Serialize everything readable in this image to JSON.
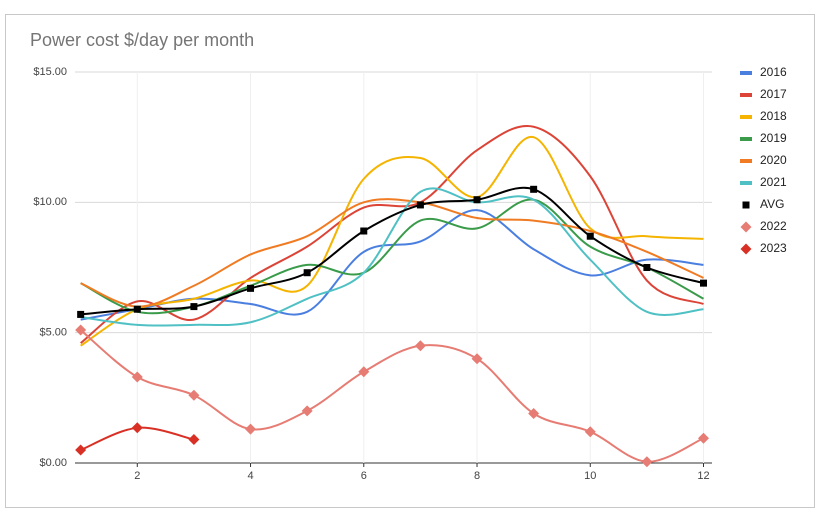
{
  "chart_data": {
    "type": "line",
    "title": "Power cost $/day per month",
    "x": [
      1,
      2,
      3,
      4,
      5,
      6,
      7,
      8,
      9,
      10,
      11,
      12
    ],
    "xlim": [
      0.9,
      12.15
    ],
    "xticks": [
      2,
      4,
      6,
      8,
      10,
      12
    ],
    "ylim": [
      0,
      15
    ],
    "yticks": [
      {
        "value": 0,
        "label": "$0.00"
      },
      {
        "value": 5,
        "label": "$5.00"
      },
      {
        "value": 10,
        "label": "$10.00"
      },
      {
        "value": 15,
        "label": "$15.00"
      }
    ],
    "grid": true,
    "smooth": true,
    "legend": "right",
    "series": [
      {
        "name": "2016",
        "color": "#4a7fe0",
        "marker": "line",
        "values": [
          5.5,
          5.9,
          6.3,
          6.1,
          5.8,
          8.1,
          8.5,
          9.7,
          8.2,
          7.2,
          7.8,
          7.6
        ]
      },
      {
        "name": "2017",
        "color": "#db4437",
        "marker": "line",
        "values": [
          4.6,
          6.2,
          5.5,
          7.1,
          8.3,
          9.8,
          10.0,
          12.0,
          12.9,
          11.0,
          7.0,
          6.1
        ]
      },
      {
        "name": "2018",
        "color": "#f4b400",
        "marker": "line",
        "values": [
          4.5,
          5.9,
          6.3,
          7.0,
          6.8,
          10.9,
          11.7,
          10.2,
          12.5,
          9.0,
          8.7,
          8.6
        ]
      },
      {
        "name": "2019",
        "color": "#3a9b4a",
        "marker": "line",
        "values": [
          6.9,
          5.8,
          6.0,
          6.8,
          7.6,
          7.3,
          9.3,
          9.0,
          10.1,
          8.3,
          7.5,
          6.3
        ]
      },
      {
        "name": "2020",
        "color": "#f07b22",
        "marker": "line",
        "values": [
          6.9,
          6.0,
          6.8,
          8.0,
          8.7,
          10.0,
          10.0,
          9.4,
          9.3,
          8.9,
          8.1,
          7.1
        ]
      },
      {
        "name": "2021",
        "color": "#4fc0c4",
        "marker": "line",
        "values": [
          5.6,
          5.3,
          5.3,
          5.4,
          6.3,
          7.3,
          10.4,
          10.0,
          10.1,
          7.8,
          5.8,
          5.9
        ]
      },
      {
        "name": "AVG",
        "color": "#000000",
        "marker": "square",
        "values": [
          5.7,
          5.9,
          6.0,
          6.7,
          7.3,
          8.9,
          9.9,
          10.1,
          10.5,
          8.7,
          7.5,
          6.9
        ]
      },
      {
        "name": "2022",
        "color": "#e67c73",
        "marker": "diamond",
        "values": [
          5.1,
          3.3,
          2.6,
          1.3,
          2.0,
          3.5,
          4.5,
          4.0,
          1.9,
          1.2,
          0.05,
          0.95
        ]
      },
      {
        "name": "2023",
        "color": "#d93025",
        "marker": "diamond",
        "values": [
          0.5,
          1.35,
          0.9,
          null,
          null,
          null,
          null,
          null,
          null,
          null,
          null,
          null
        ]
      }
    ]
  }
}
